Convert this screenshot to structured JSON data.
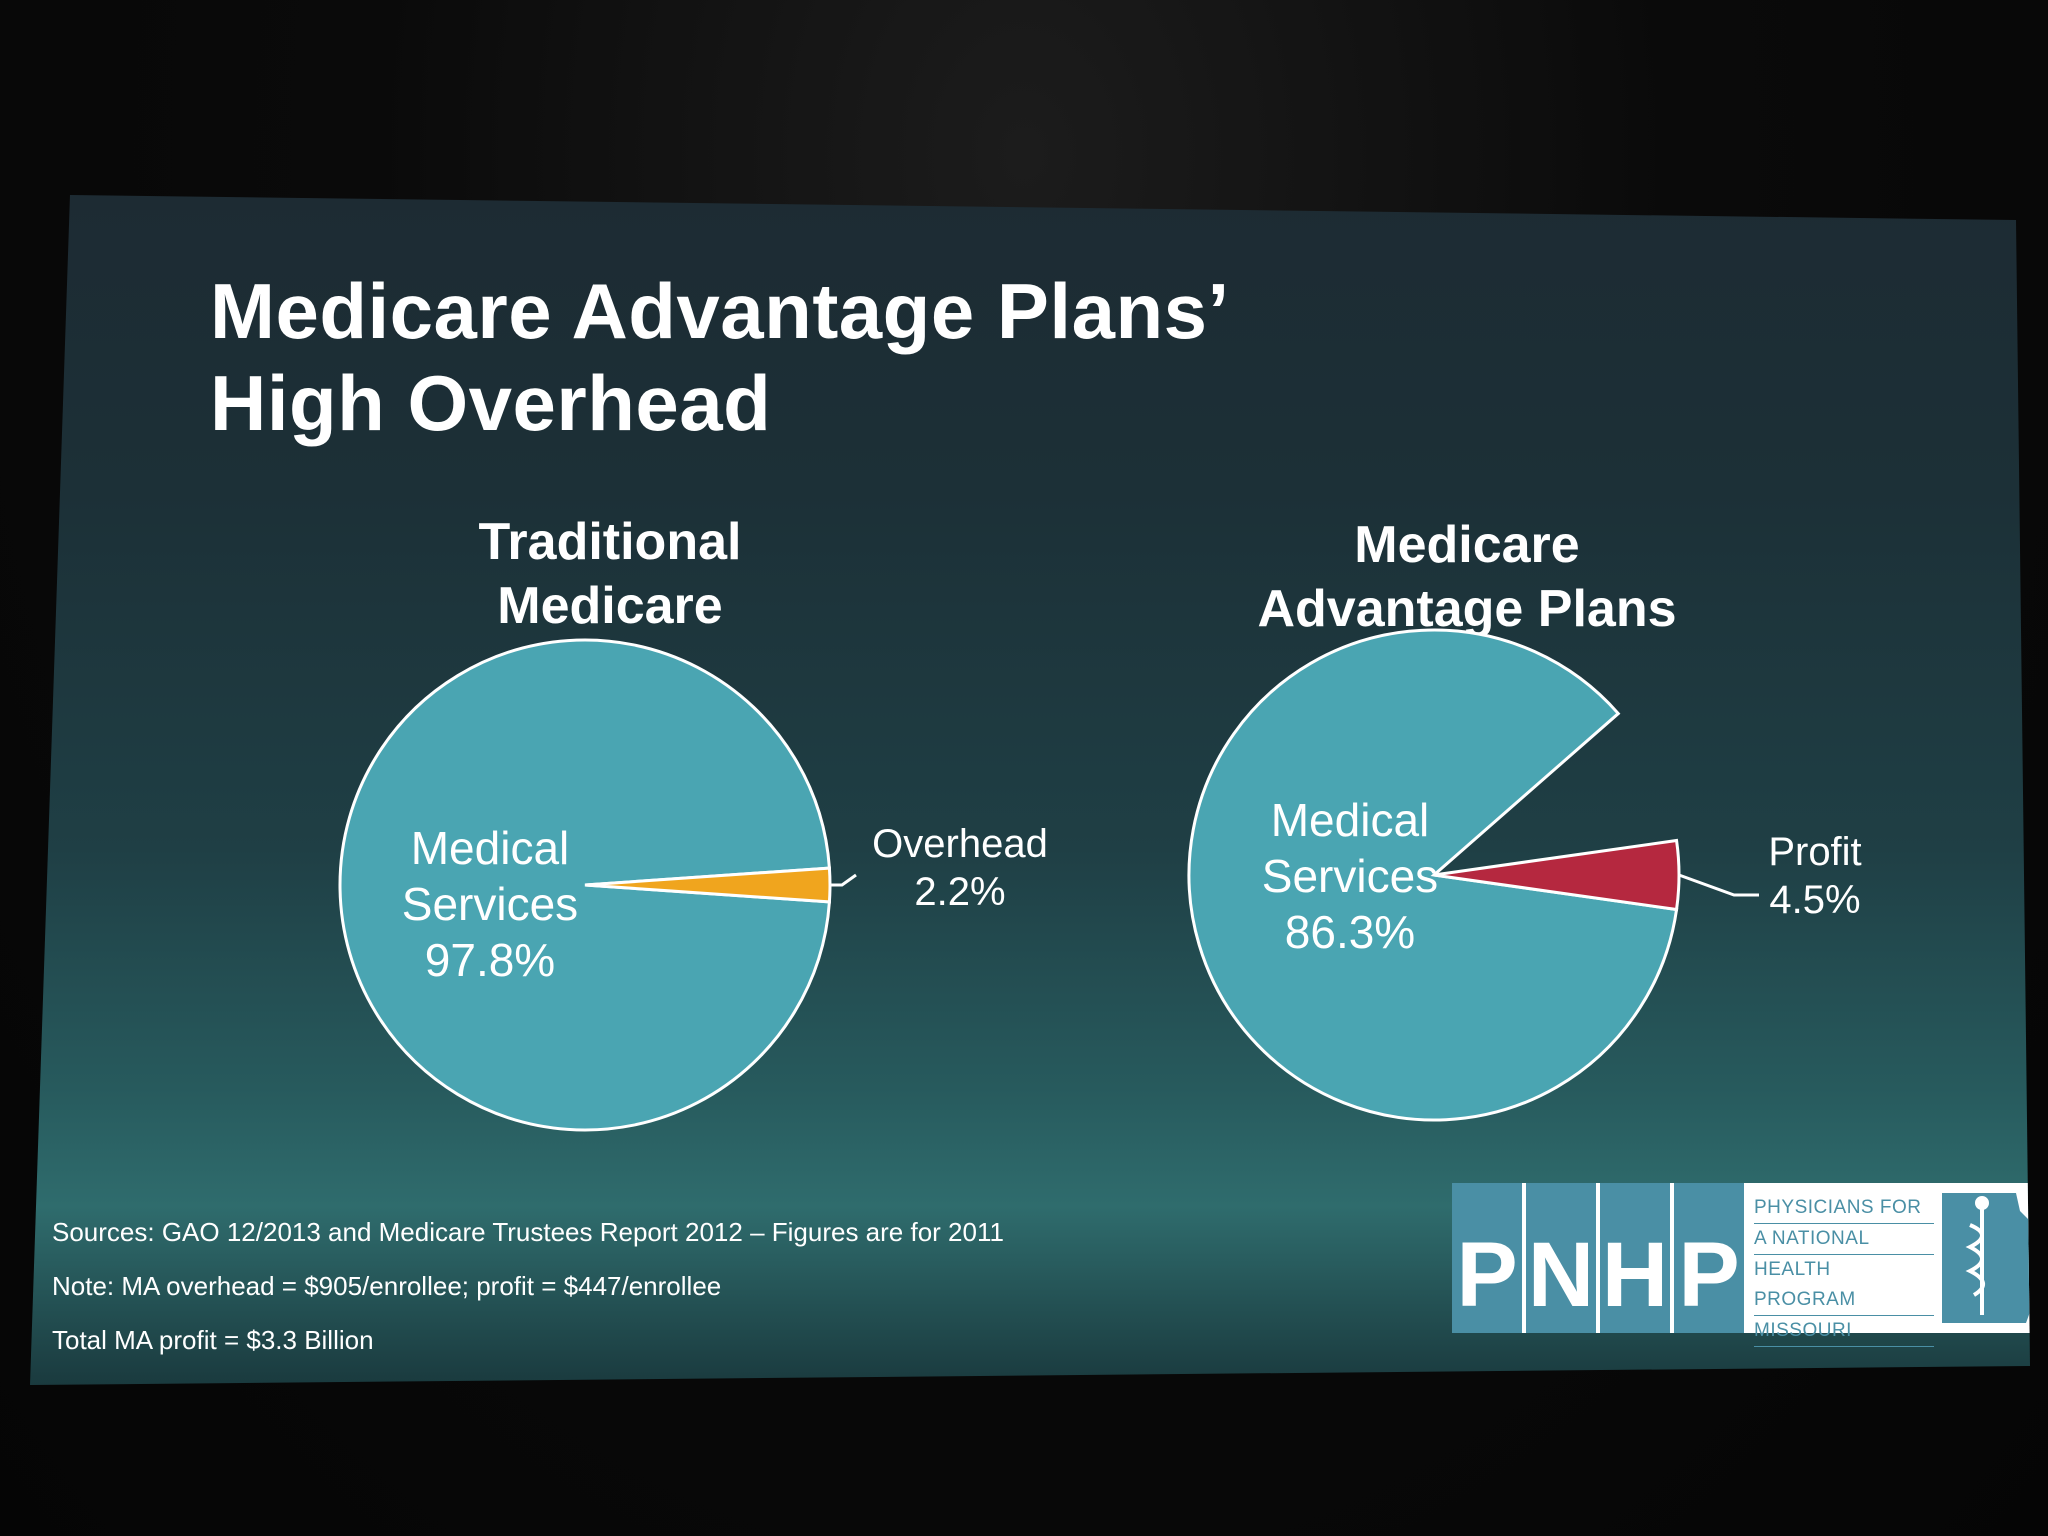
{
  "slide": {
    "title_line1": "Medicare Advantage Plans’",
    "title_line2": "High Overhead"
  },
  "chart_data": [
    {
      "type": "pie",
      "title": [
        "Traditional",
        "Medicare"
      ],
      "slices": [
        {
          "label": [
            "Medical",
            "Services"
          ],
          "value": 97.8,
          "value_label": "97.8%",
          "color": "#4aa5b2"
        },
        {
          "label": [
            "Overhead"
          ],
          "value": 2.2,
          "value_label": "2.2%",
          "color": "#f0a51e"
        }
      ]
    },
    {
      "type": "pie",
      "title": [
        "Medicare",
        "Advantage Plans"
      ],
      "slices": [
        {
          "label": [
            "Medical",
            "Services"
          ],
          "value": 86.3,
          "value_label": "86.3%",
          "color": "#4aa5b2"
        },
        {
          "label": [
            "Profit"
          ],
          "value": 4.5,
          "value_label": "4.5%",
          "color": "#b5283f"
        }
      ]
    }
  ],
  "notes": {
    "sources": "Sources: GAO 12/2013 and Medicare Trustees Report 2012 – Figures are for 2011",
    "note": "Note: MA overhead = $905/enrollee; profit = $447/enrollee",
    "total": "Total MA profit = $3.3 Billion"
  },
  "logo": {
    "letters": [
      "P",
      "N",
      "H",
      "P"
    ],
    "text_lines": [
      "PHYSICIANS FOR",
      "A NATIONAL",
      "HEALTH PROGRAM",
      "MISSOURI"
    ],
    "color": "#4a8fa5",
    "icon": "caduceus-icon"
  }
}
